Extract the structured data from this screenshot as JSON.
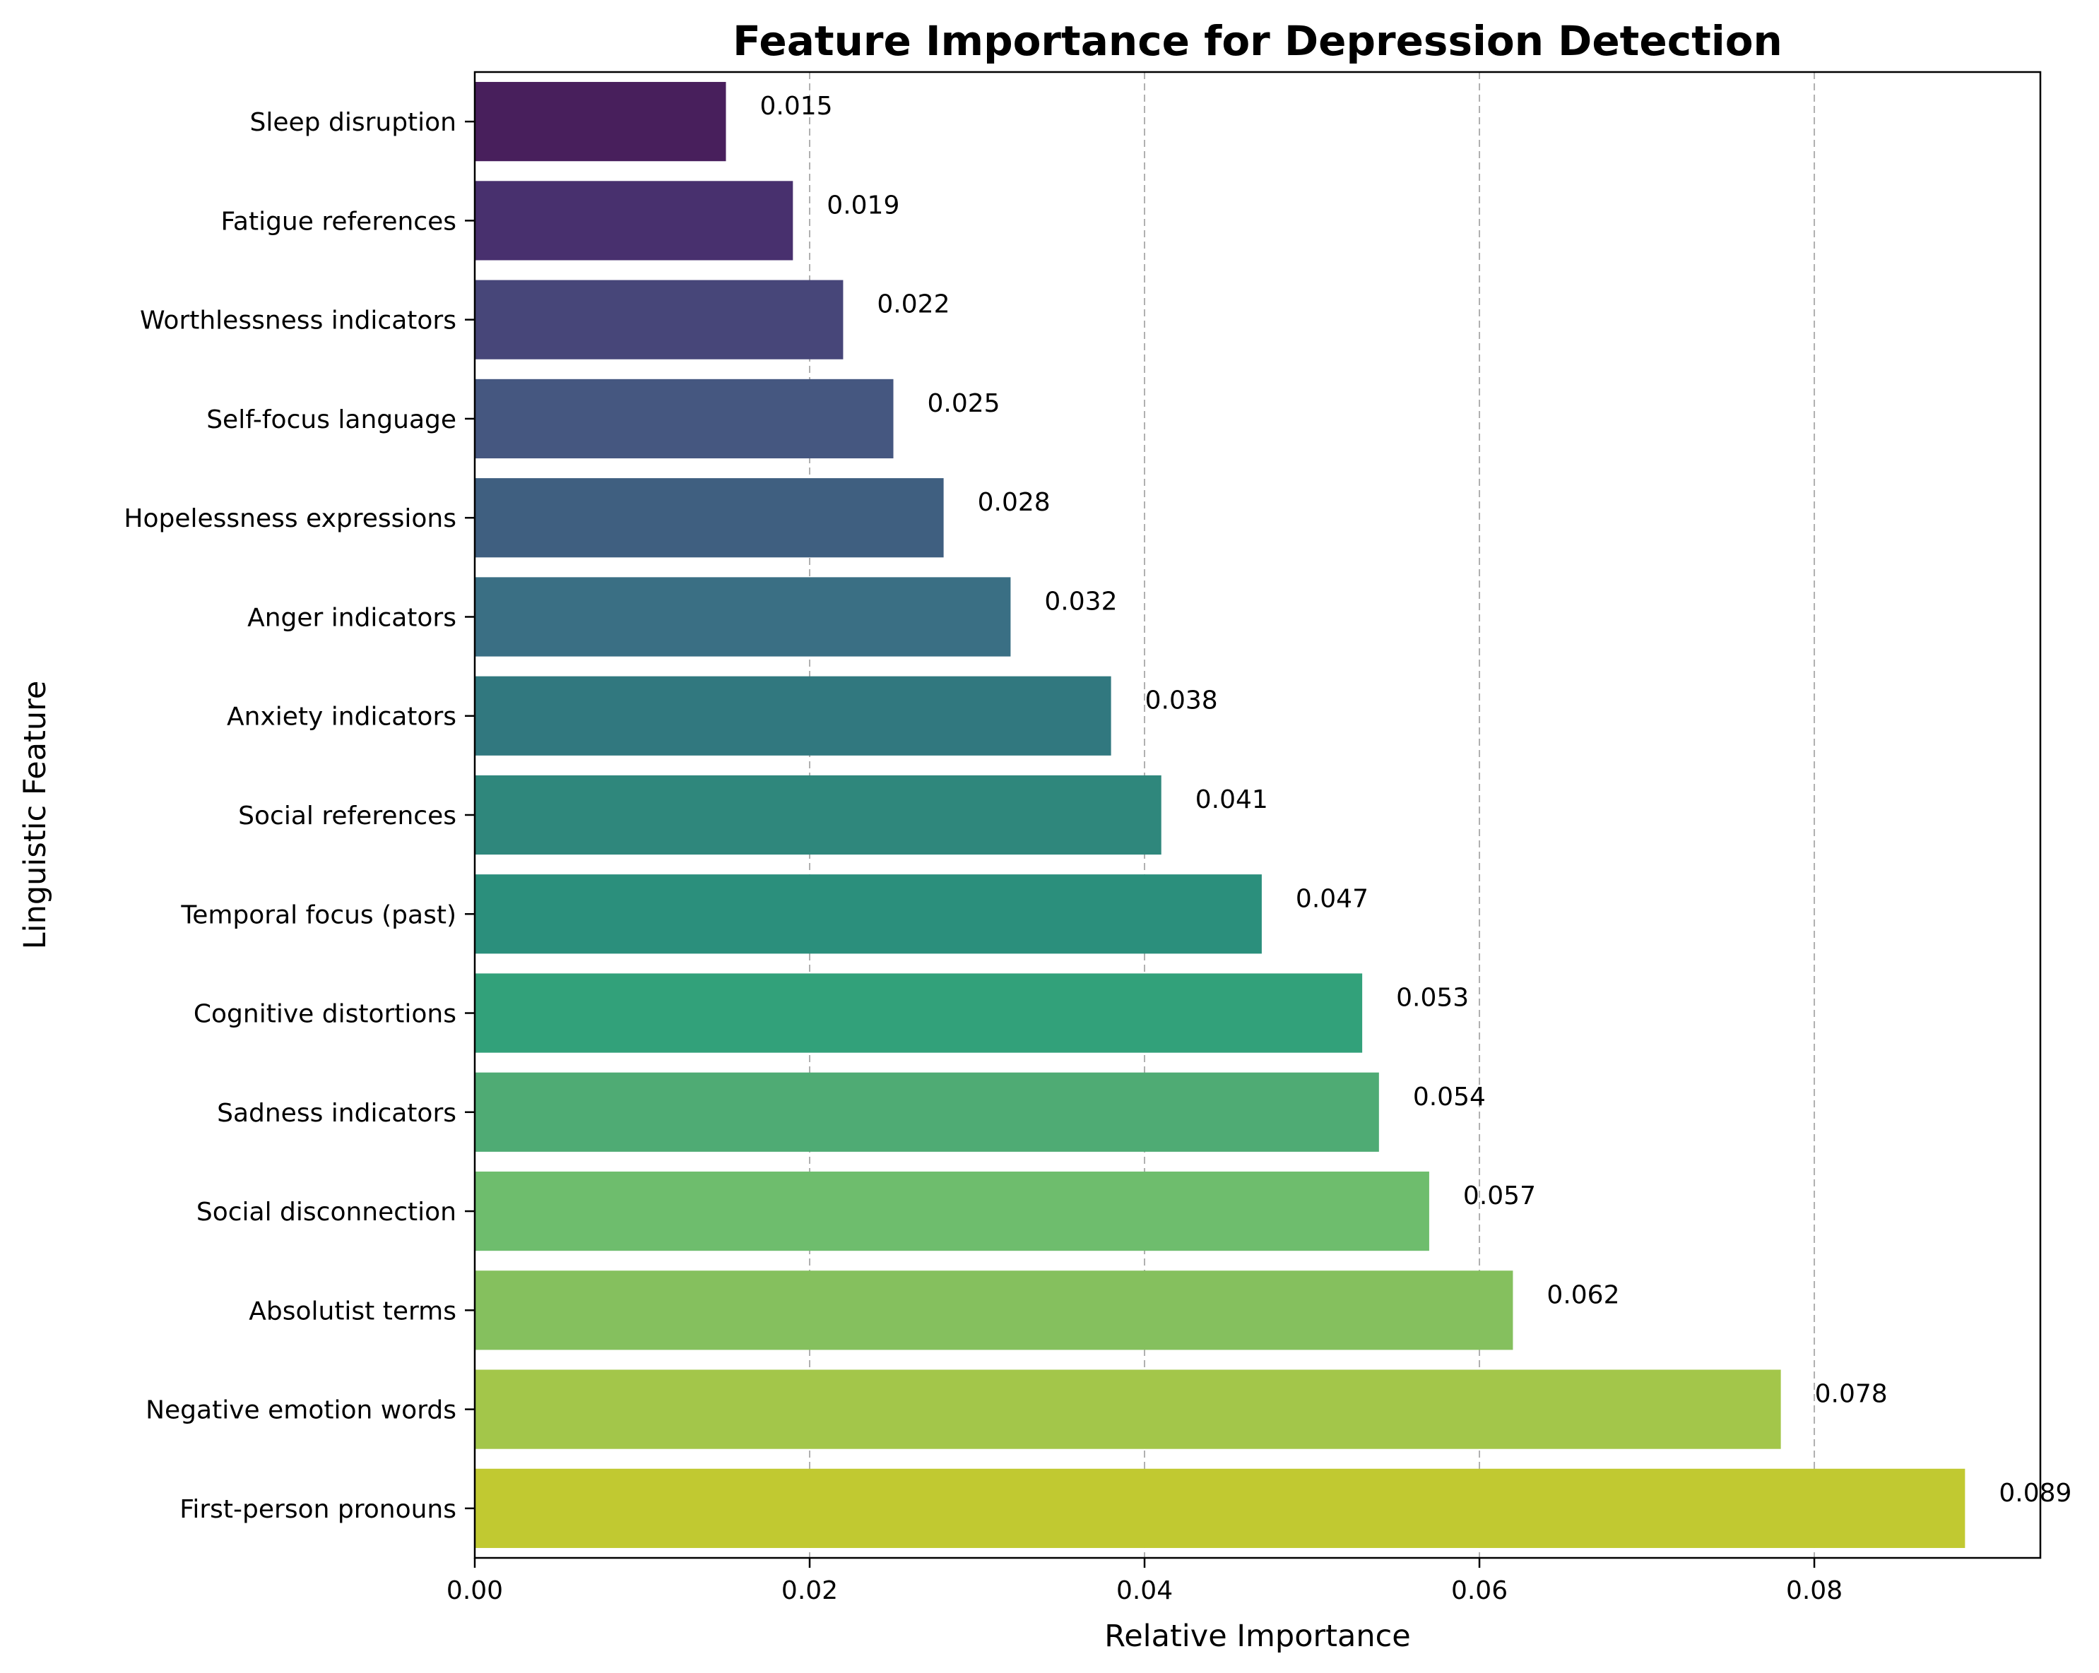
{
  "chart_data": {
    "type": "bar",
    "orientation": "horizontal",
    "title": "Feature Importance for Depression Detection",
    "xlabel": "Relative Importance",
    "ylabel": "Linguistic Feature",
    "categories": [
      "Sleep disruption",
      "Fatigue references",
      "Worthlessness indicators",
      "Self-focus language",
      "Hopelessness expressions",
      "Anger indicators",
      "Anxiety indicators",
      "Social references",
      "Temporal focus (past)",
      "Cognitive distortions",
      "Sadness indicators",
      "Social disconnection",
      "Absolutist terms",
      "Negative emotion words",
      "First-person pronouns"
    ],
    "values": [
      0.015,
      0.019,
      0.022,
      0.025,
      0.028,
      0.032,
      0.038,
      0.041,
      0.047,
      0.053,
      0.054,
      0.057,
      0.062,
      0.078,
      0.089
    ],
    "value_labels": [
      "0.015",
      "0.019",
      "0.022",
      "0.025",
      "0.028",
      "0.032",
      "0.038",
      "0.041",
      "0.047",
      "0.053",
      "0.054",
      "0.057",
      "0.062",
      "0.078",
      "0.089"
    ],
    "bar_colors": [
      "#481f5c",
      "#48306e",
      "#474679",
      "#455780",
      "#3f5f80",
      "#3a6f84",
      "#31787f",
      "#2f877c",
      "#2b8f7c",
      "#32a17a",
      "#4fab74",
      "#6ebd6d",
      "#85c05e",
      "#a3c64a",
      "#c1c931"
    ],
    "xlim": [
      0,
      0.0935
    ],
    "xticks": [
      0.0,
      0.02,
      0.04,
      0.06,
      0.08
    ],
    "xtick_labels": [
      "0.00",
      "0.02",
      "0.04",
      "0.06",
      "0.08"
    ],
    "grid": "x-dashed",
    "legend": "none"
  }
}
